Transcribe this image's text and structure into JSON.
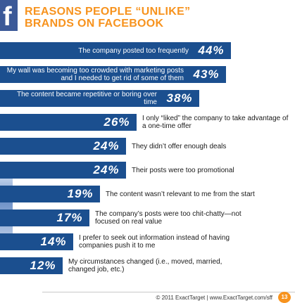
{
  "header": {
    "title_line1": "REASONS PEOPLE “UNLIKE”",
    "title_line2": "BRANDS ON FACEBOOK",
    "logo_glyph": "f"
  },
  "colors": {
    "bar": "#1b4f8f",
    "title": "#f7931e",
    "facebook": "#3b5998"
  },
  "chart_data": {
    "type": "bar",
    "orientation": "horizontal",
    "title": "REASONS PEOPLE “UNLIKE” BRANDS ON FACEBOOK",
    "unit": "%",
    "xlim": [
      0,
      44
    ],
    "bars": [
      {
        "value": 44,
        "label": "44%",
        "text": "The company posted too frequently"
      },
      {
        "value": 43,
        "label": "43%",
        "text": "My wall was becoming too crowded with marketing posts and I needed to get rid of some of them"
      },
      {
        "value": 38,
        "label": "38%",
        "text": "The content became repetitive or boring over time"
      },
      {
        "value": 26,
        "label": "26%",
        "text": "I only “liked” the company to take advantage of a one-time offer"
      },
      {
        "value": 24,
        "label": "24%",
        "text": "They didn’t offer enough deals"
      },
      {
        "value": 24,
        "label": "24%",
        "text": "Their posts were too promotional"
      },
      {
        "value": 19,
        "label": "19%",
        "text": "The content wasn’t relevant to me from the start"
      },
      {
        "value": 17,
        "label": "17%",
        "text": "The company’s posts were too chit-chatty—not focused on real value"
      },
      {
        "value": 14,
        "label": "14%",
        "text": "I prefer to seek out information instead of having companies push it to me"
      },
      {
        "value": 12,
        "label": "12%",
        "text": "My circumstances changed (i.e., moved, married, changed job, etc.)"
      }
    ]
  },
  "footer": {
    "text": "© 2011 ExactTarget  |  www.ExactTarget.com/sff",
    "page_number": "13"
  }
}
